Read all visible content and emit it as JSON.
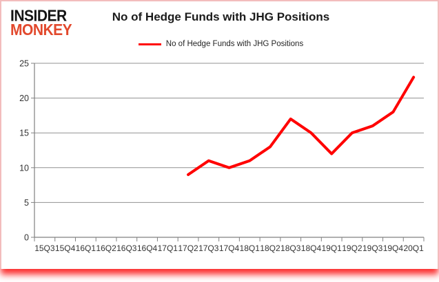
{
  "brand": {
    "line1": "INSIDER",
    "line2": "MONKEY",
    "line1_color": "#141414",
    "line2_color": "#e2492d"
  },
  "header": {
    "title": "No of Hedge Funds with JHG Positions"
  },
  "legend": {
    "label": "No of Hedge Funds with JHG Positions",
    "swatch_color": "#ff0000"
  },
  "chart_data": {
    "type": "line",
    "title": "No of Hedge Funds with JHG Positions",
    "categories": [
      "15Q3",
      "15Q4",
      "16Q1",
      "16Q2",
      "16Q3",
      "16Q4",
      "17Q1",
      "17Q2",
      "17Q3",
      "17Q4",
      "18Q1",
      "18Q2",
      "18Q3",
      "18Q4",
      "19Q1",
      "19Q2",
      "19Q3",
      "19Q4",
      "20Q1"
    ],
    "series": [
      {
        "name": "No of Hedge Funds with JHG Positions",
        "color": "#ff0000",
        "values": [
          null,
          null,
          null,
          null,
          null,
          null,
          null,
          9,
          11,
          10,
          11,
          13,
          17,
          15,
          12,
          15,
          16,
          18,
          23
        ]
      }
    ],
    "y_ticks": [
      0,
      5,
      10,
      15,
      20,
      25
    ],
    "ylim": [
      0,
      25
    ],
    "grid": true,
    "grid_color": "#919191",
    "axis_color": "#808080",
    "tick_label_color": "#333333",
    "legend_position": "top",
    "xlabel": "",
    "ylabel": ""
  }
}
